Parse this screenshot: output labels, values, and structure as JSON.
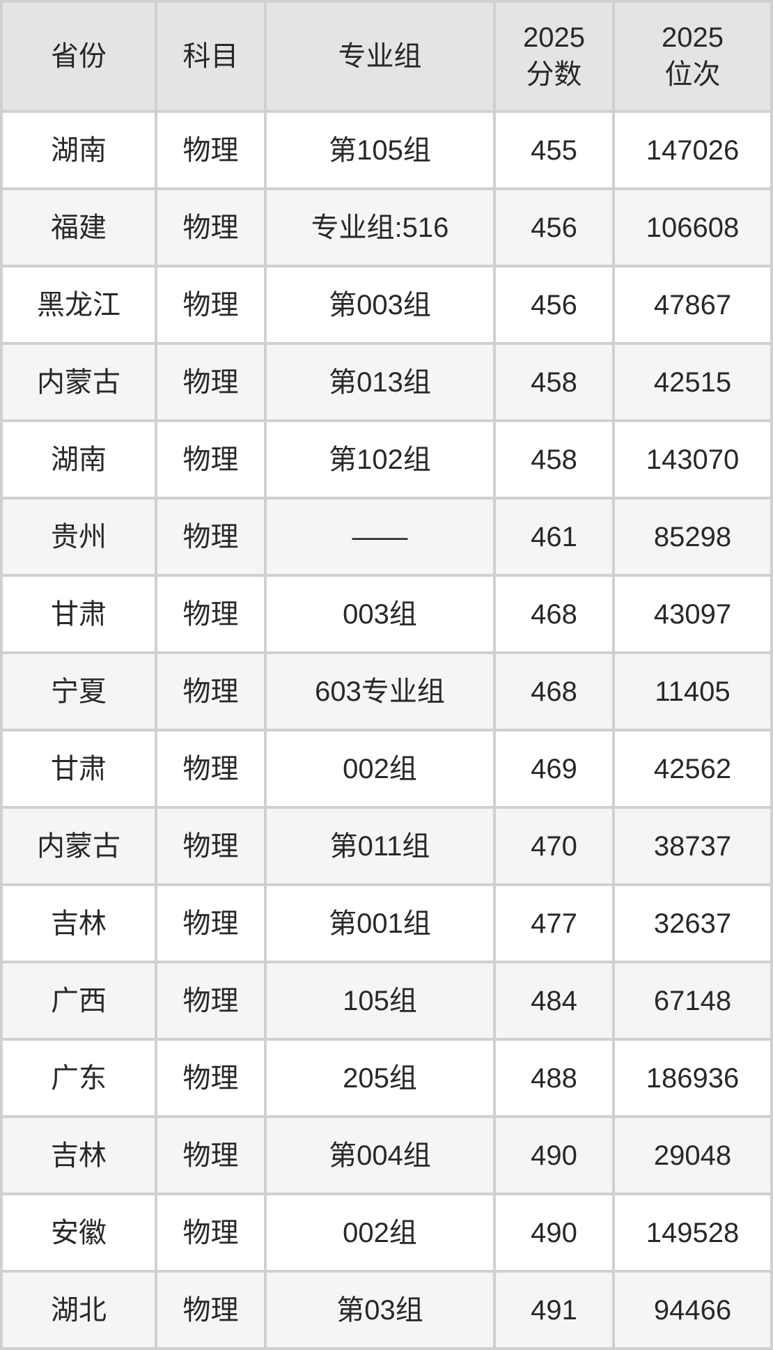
{
  "chart_data": {
    "type": "table",
    "title": "",
    "columns": [
      "省份",
      "科目",
      "专业组",
      "2025\n分数",
      "2025\n位次"
    ],
    "rows": [
      [
        "湖南",
        "物理",
        "第105组",
        "455",
        "147026"
      ],
      [
        "福建",
        "物理",
        "专业组:516",
        "456",
        "106608"
      ],
      [
        "黑龙江",
        "物理",
        "第003组",
        "456",
        "47867"
      ],
      [
        "内蒙古",
        "物理",
        "第013组",
        "458",
        "42515"
      ],
      [
        "湖南",
        "物理",
        "第102组",
        "458",
        "143070"
      ],
      [
        "贵州",
        "物理",
        "——",
        "461",
        "85298"
      ],
      [
        "甘肃",
        "物理",
        "003组",
        "468",
        "43097"
      ],
      [
        "宁夏",
        "物理",
        "603专业组",
        "468",
        "11405"
      ],
      [
        "甘肃",
        "物理",
        "002组",
        "469",
        "42562"
      ],
      [
        "内蒙古",
        "物理",
        "第011组",
        "470",
        "38737"
      ],
      [
        "吉林",
        "物理",
        "第001组",
        "477",
        "32637"
      ],
      [
        "广西",
        "物理",
        "105组",
        "484",
        "67148"
      ],
      [
        "广东",
        "物理",
        "205组",
        "488",
        "186936"
      ],
      [
        "吉林",
        "物理",
        "第004组",
        "490",
        "29048"
      ],
      [
        "安徽",
        "物理",
        "002组",
        "490",
        "149528"
      ],
      [
        "湖北",
        "物理",
        "第03组",
        "491",
        "94466"
      ]
    ]
  },
  "colors": {
    "header_bg": "#e4e4e4",
    "row_bg_odd": "#ffffff",
    "row_bg_even": "#f5f5f6",
    "grid_border": "#d0d0d0",
    "text": "#282828"
  }
}
